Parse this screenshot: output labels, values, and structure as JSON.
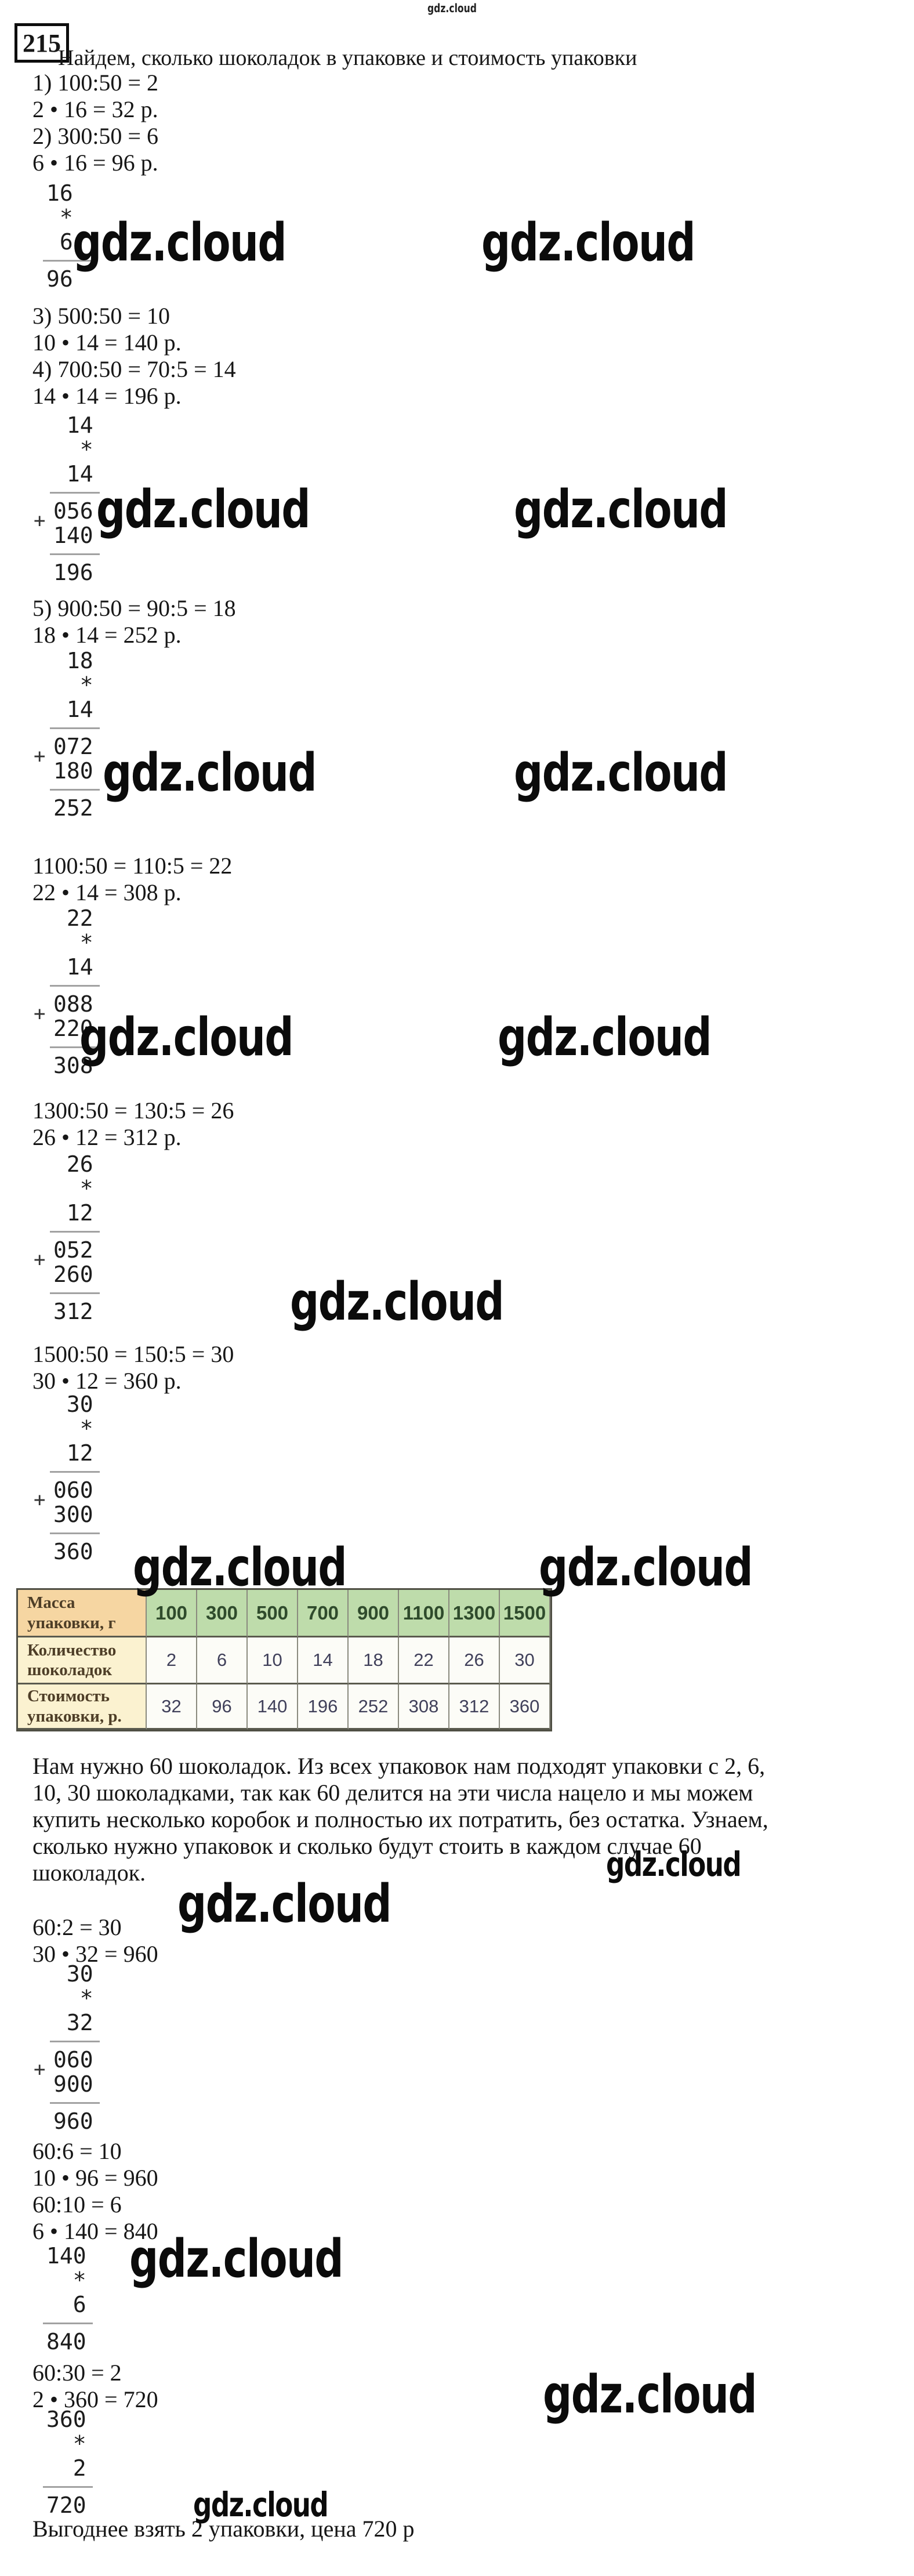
{
  "watermark": {
    "text": "gdz.cloud",
    "small_color": "#6e6ecb"
  },
  "header": {
    "problem_number": "215",
    "title": "Найдем, сколько шоколадок в упаковке и стоимость упаковки"
  },
  "plus_sign": "+",
  "formula_groups": [
    {
      "lines": [
        "1) 100:50 = 2",
        "2 • 16 = 32 р.",
        "2) 300:50 = 6",
        "6 • 16 = 96 р."
      ]
    },
    {
      "lines": [
        "3) 500:50 = 10",
        "10 • 14 = 140 р.",
        "4) 700:50 = 70:5 = 14",
        "14 • 14 = 196 р."
      ]
    },
    {
      "lines": [
        "5) 900:50 = 90:5 = 18",
        "18 • 14 = 252 р."
      ]
    },
    {
      "lines": [
        "1100:50 = 110:5 = 22",
        "22 • 14 = 308 р."
      ]
    },
    {
      "lines": [
        "1300:50 = 130:5 = 26",
        "26 • 12 = 312 р."
      ]
    },
    {
      "lines": [
        "1500:50 = 150:5 = 30",
        "30 • 12 = 360 р."
      ]
    },
    {
      "lines": [
        "60:2 = 30",
        "30 • 32 = 960"
      ]
    },
    {
      "lines": [
        "60:6 = 10",
        "10 • 96 = 960",
        "60:10 = 6",
        "6 • 140 = 840"
      ]
    },
    {
      "lines": [
        "60:30 = 2",
        "2 • 360 = 720"
      ]
    }
  ],
  "mult_blocks": [
    {
      "id": "b16x6",
      "lines": [
        "16",
        " *",
        " 6",
        "|",
        "96"
      ],
      "plus": false
    },
    {
      "id": "b14x14",
      "lines": [
        " 14",
        "  *",
        " 14",
        "|",
        "056",
        "140",
        "|",
        "196"
      ],
      "plus": true
    },
    {
      "id": "b18x14",
      "lines": [
        " 18",
        "  *",
        " 14",
        "|",
        "072",
        "180",
        "|",
        "252"
      ],
      "plus": true
    },
    {
      "id": "b22x14",
      "lines": [
        " 22",
        "  *",
        " 14",
        "|",
        "088",
        "220",
        "|",
        "308"
      ],
      "plus": true
    },
    {
      "id": "b26x12",
      "lines": [
        " 26",
        "  *",
        " 12",
        "|",
        "052",
        "260",
        "|",
        "312"
      ],
      "plus": true
    },
    {
      "id": "b30x12",
      "lines": [
        " 30",
        "  *",
        " 12",
        "|",
        "060",
        "300",
        "|",
        "360"
      ],
      "plus": true
    },
    {
      "id": "b30x32",
      "lines": [
        " 30",
        "  *",
        " 32",
        "|",
        "060",
        "900",
        "|",
        "960"
      ],
      "plus": true
    },
    {
      "id": "b140x6",
      "lines": [
        "140",
        "  *",
        "  6",
        "|",
        "840"
      ],
      "plus": false
    },
    {
      "id": "b360x2",
      "lines": [
        "360",
        "  *",
        "  2",
        "|",
        "720"
      ],
      "plus": false
    }
  ],
  "table": {
    "rows": [
      {
        "label": "Масса\nупаковки, г",
        "values": [
          "100",
          "300",
          "500",
          "700",
          "900",
          "1100",
          "1300",
          "1500"
        ]
      },
      {
        "label": "Количество\nшоколадок",
        "values": [
          "2",
          "6",
          "10",
          "14",
          "18",
          "22",
          "26",
          "30"
        ]
      },
      {
        "label": "Стоимость\nупаковки, р.",
        "values": [
          "32",
          "96",
          "140",
          "196",
          "252",
          "308",
          "312",
          "360"
        ]
      }
    ],
    "colors": {
      "label_header_bg": "#f6d6a2",
      "label_bg": "#fbf2d0",
      "header_value_bg": "#bedcab",
      "value_bg": "#fcfcf7",
      "label_text": "#4e3e27",
      "header_value_text": "#2f4b2c",
      "value_text": "#40405a"
    }
  },
  "paragraph": "Нам нужно 60 шоколадок. Из всех упаковок нам подходят упаковки с 2, 6,\n10, 30 шоколадками, так как 60 делится на эти числа нацело и мы можем\nкупить несколько коробок и полностью их потратить, без остатка. Узнаем,\nсколько нужно упаковок и сколько будут стоить в каждом случае 60\nшоколадок.",
  "conclusion": "Выгоднее взять 2 упаковки, цена 720 р"
}
